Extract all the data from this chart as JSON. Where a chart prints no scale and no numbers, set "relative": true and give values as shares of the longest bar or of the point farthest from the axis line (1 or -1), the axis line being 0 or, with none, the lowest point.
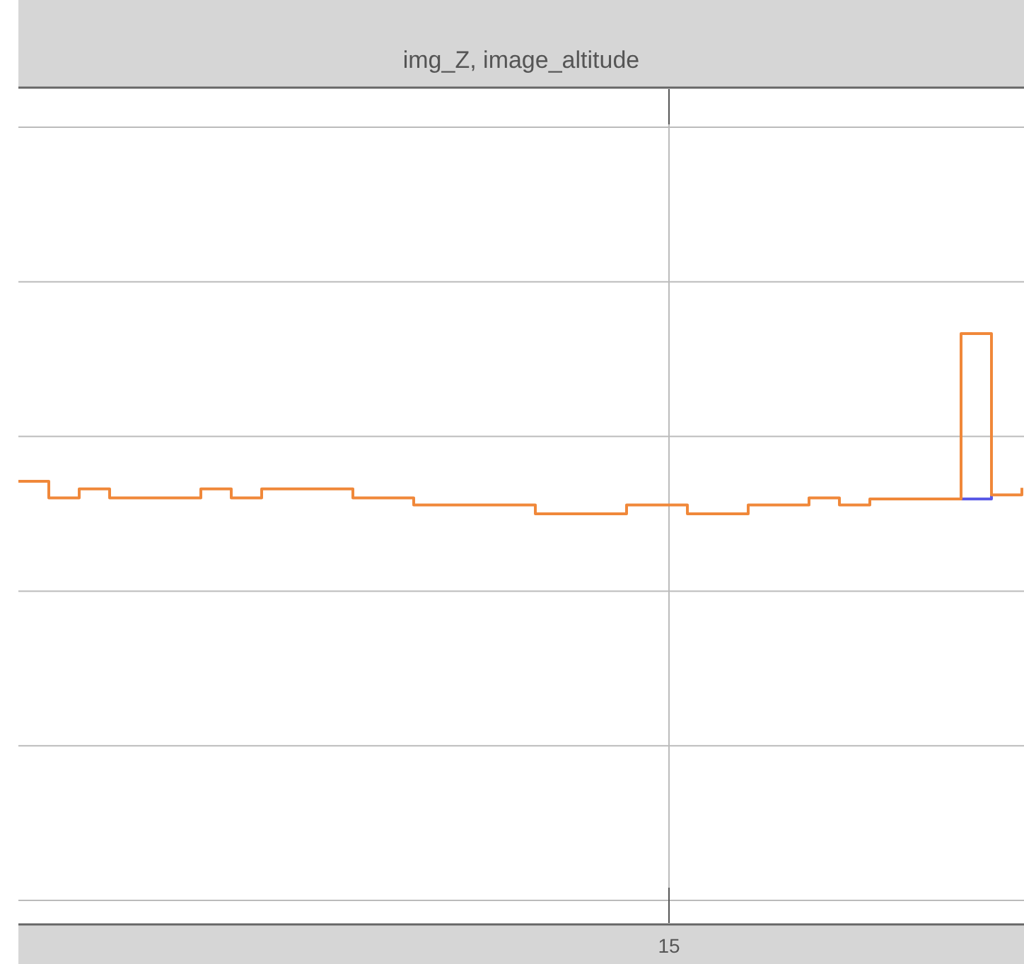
{
  "chart_data": {
    "type": "step",
    "title": "img_Z, image_altitude",
    "relative": true,
    "grid": true,
    "categories": [
      null,
      null,
      null,
      null,
      null,
      null,
      null,
      null,
      null,
      null,
      null,
      null,
      null,
      null,
      null,
      null,
      null,
      null,
      null,
      null,
      null,
      null,
      null,
      null,
      null,
      null,
      null,
      null,
      null,
      null,
      null,
      null,
      null,
      null
    ],
    "annotations": [
      "15"
    ],
    "series": [
      {
        "color": "#5a5ae6",
        "values": [
          null,
          null,
          null,
          null,
          null,
          null,
          null,
          null,
          null,
          null,
          null,
          null,
          null,
          null,
          null,
          null,
          null,
          null,
          null,
          null,
          null,
          null,
          null,
          null,
          null,
          null,
          null,
          null,
          null,
          null,
          null,
          0.72,
          0.727,
          null
        ]
      },
      {
        "color": "#f0883a",
        "values": [
          0.75,
          0.722,
          0.737,
          0.722,
          0.722,
          0.722,
          0.737,
          0.722,
          0.737,
          0.737,
          0.737,
          0.722,
          0.722,
          0.71,
          0.71,
          0.71,
          0.71,
          0.695,
          0.695,
          0.695,
          0.71,
          0.71,
          0.695,
          0.695,
          0.71,
          0.71,
          0.722,
          0.71,
          0.72,
          0.72,
          0.72,
          1,
          0.727,
          0.739
        ]
      }
    ]
  }
}
